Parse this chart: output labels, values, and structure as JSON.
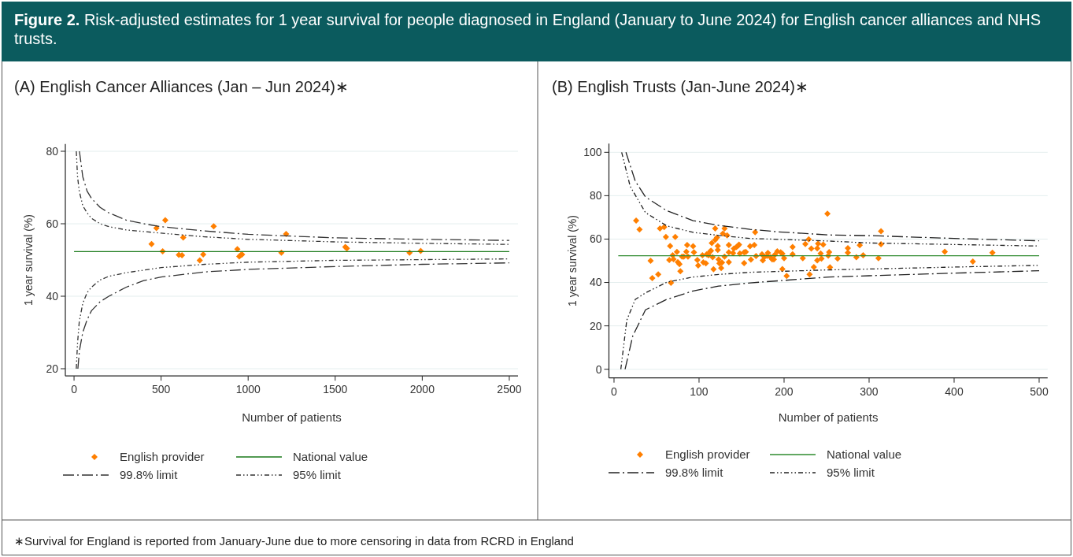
{
  "chart_data": [
    {
      "type": "scatter",
      "title": "(A) English Cancer Alliances (Jan – Jun 2024)∗",
      "xlabel": "Number of patients",
      "ylabel": "1 year survival (%)",
      "xlim": [
        -50,
        2550
      ],
      "xticks": [
        0,
        500,
        1000,
        1500,
        2000,
        2500
      ],
      "ylim": [
        18,
        82
      ],
      "yticks": [
        20,
        40,
        60,
        80
      ],
      "grid": "y",
      "legend": "bottom",
      "annotations": [
        "Figure 2.",
        "Risk-adjusted estimates for 1 year survival for people diagnosed in England (January to June 2024) for English cancer alliances and NHS trusts.",
        "∗Survival for England is reported from January-June due to more censoring in data from RCRD in England"
      ],
      "series": [
        {
          "name": "English provider",
          "color": "#ff7f00",
          "marker": "diamond",
          "x": [
            445,
            473,
            524,
            509,
            602,
            620,
            627,
            722,
            742,
            802,
            938,
            949,
            956,
            965,
            1191,
            1218,
            1558,
            1567,
            1927,
            1991
          ],
          "values": [
            54.4,
            58.8,
            61.0,
            52.4,
            51.4,
            51.3,
            56.2,
            49.9,
            51.5,
            59.3,
            53.0,
            51.0,
            51.3,
            51.5,
            52.0,
            57.2,
            53.6,
            53.2,
            52.0,
            52.5
          ]
        },
        {
          "name": "National value",
          "type": "line",
          "color": "#1a7a1a",
          "marker": "none",
          "line_style": "solid",
          "x": [
            0,
            2500
          ],
          "values": [
            52.3,
            52.3
          ]
        },
        {
          "name": "99.8% limit",
          "type": "line",
          "color": "#333333",
          "marker": "none",
          "line_style": "dashed",
          "x": [
            31,
            50,
            75,
            100,
            150,
            200,
            300,
            400,
            500,
            750,
            1000,
            1500,
            2000,
            2500
          ],
          "values": [
            80,
            73,
            69,
            67,
            64.5,
            63,
            61,
            60,
            59.2,
            58,
            57.1,
            56.1,
            55.7,
            55.4
          ]
        },
        {
          "type": "line",
          "color": "#333333",
          "marker": "none",
          "line_style": "dashed",
          "x": [
            22,
            31,
            50,
            75,
            100,
            150,
            200,
            300,
            400,
            500,
            750,
            1000,
            1500,
            2000,
            2500
          ],
          "values": [
            20,
            25,
            30,
            33.5,
            36,
            38.5,
            40,
            42.5,
            44.3,
            45.3,
            46.7,
            47.4,
            48.2,
            48.8,
            49.2
          ]
        },
        {
          "name": "95% limit",
          "type": "line",
          "color": "#333333",
          "marker": "none",
          "line_style": "dotted",
          "x": [
            13,
            20,
            30,
            50,
            75,
            100,
            150,
            200,
            300,
            500,
            750,
            1000,
            1500,
            2000,
            2500
          ],
          "values": [
            80,
            73,
            69,
            65,
            63,
            61.5,
            60,
            59.2,
            58.3,
            57.4,
            56.4,
            55.7,
            55,
            54.6,
            54.3
          ]
        },
        {
          "type": "line",
          "color": "#333333",
          "marker": "none",
          "line_style": "dotted",
          "x": [
            13,
            20,
            30,
            50,
            75,
            100,
            150,
            200,
            300,
            500,
            750,
            1000,
            1500,
            2000,
            2500
          ],
          "values": [
            20,
            27,
            33,
            38,
            41,
            42.5,
            44.5,
            45.5,
            46.5,
            47.9,
            48.8,
            49.4,
            49.9,
            50.1,
            50.3
          ]
        }
      ]
    },
    {
      "type": "scatter",
      "title": "(B) English Trusts (Jan-June 2024)∗",
      "xlabel": "Number of patients",
      "ylabel": "1 year survival (%)",
      "xlim": [
        -6,
        510
      ],
      "xticks": [
        0,
        100,
        200,
        300,
        400,
        500
      ],
      "ylim": [
        -4,
        104
      ],
      "yticks": [
        0,
        20,
        40,
        60,
        80,
        100
      ],
      "grid": "y",
      "legend": "bottom",
      "series": [
        {
          "name": "English provider",
          "color": "#ff7f00",
          "marker": "diamond",
          "x": [
            26,
            30,
            43,
            45,
            52,
            54,
            59,
            61,
            66,
            65,
            67,
            69,
            72,
            70,
            74,
            75,
            77,
            78,
            80,
            82,
            85,
            86,
            87,
            93,
            94,
            98,
            99,
            104,
            105,
            108,
            109,
            111,
            113,
            114,
            115,
            116,
            117,
            119,
            119,
            121,
            122,
            122,
            123,
            124,
            126,
            127,
            128,
            130,
            133,
            130,
            135,
            135,
            135,
            140,
            141,
            144,
            146,
            147,
            148,
            153,
            153,
            155,
            160,
            161,
            165,
            166,
            167,
            174,
            175,
            177,
            180,
            181,
            184,
            186,
            188,
            189,
            192,
            196,
            198,
            198,
            200,
            203,
            210,
            210,
            222,
            225,
            229,
            230,
            232,
            235,
            239,
            240,
            239,
            243,
            244,
            246,
            251,
            252,
            253,
            254,
            263,
            275,
            275,
            285,
            289,
            293,
            311,
            314,
            314,
            389,
            422,
            445
          ],
          "values": [
            68.5,
            64.4,
            50.0,
            42.0,
            43.7,
            64.9,
            65.5,
            61.0,
            56.8,
            50.4,
            39.8,
            52.5,
            61.0,
            50.7,
            54.1,
            49.4,
            48.5,
            45.2,
            51.9,
            51.9,
            54.2,
            57.3,
            51.9,
            56.7,
            53.9,
            50.4,
            47.8,
            52.5,
            49.3,
            48.8,
            53.0,
            52.5,
            54.3,
            54.6,
            58.2,
            51.6,
            46.1,
            64.9,
            59.6,
            60.7,
            55.0,
            56.8,
            50.6,
            48.8,
            46.6,
            49.2,
            62.5,
            64.9,
            61.7,
            51.9,
            53.9,
            57.3,
            49.4,
            53.5,
            55.6,
            56.4,
            57.0,
            57.4,
            53.4,
            48.9,
            53.9,
            54.1,
            56.7,
            50.5,
            57.3,
            63.2,
            52.2,
            53.0,
            50.2,
            51.8,
            52.3,
            53.6,
            51.6,
            50.6,
            50.6,
            52.7,
            54.4,
            53.9,
            53.3,
            46.2,
            51.2,
            43.0,
            53.0,
            56.4,
            51.2,
            57.7,
            59.9,
            43.7,
            55.6,
            47.1,
            55.7,
            57.9,
            50.2,
            53.4,
            51.0,
            57.4,
            71.7,
            52.4,
            54.0,
            47.0,
            51.0,
            55.8,
            53.7,
            51.6,
            57.2,
            52.5,
            51.2,
            63.6,
            57.6,
            54.2,
            49.6,
            53.7
          ]
        },
        {
          "name": "National value",
          "type": "line",
          "color": "#2e8b2e",
          "marker": "none",
          "line_style": "solid",
          "x": [
            5,
            500
          ],
          "values": [
            52.3,
            52.3
          ]
        },
        {
          "name": "99.8% limit",
          "type": "line",
          "color": "#222222",
          "marker": "none",
          "line_style": "dashed",
          "x": [
            14,
            25,
            37,
            62,
            93,
            123,
            160,
            191,
            253,
            300,
            400,
            500
          ],
          "values": [
            100,
            86.7,
            79.4,
            73.1,
            68.5,
            66.3,
            64.5,
            63.4,
            61.9,
            61.6,
            60.3,
            59.2
          ]
        },
        {
          "type": "line",
          "color": "#222222",
          "marker": "none",
          "line_style": "dashed",
          "x": [
            13,
            22,
            37,
            62,
            93,
            123,
            160,
            253,
            300,
            400,
            500
          ],
          "values": [
            0,
            15.3,
            27.4,
            32.2,
            36.1,
            38.3,
            39.8,
            42.5,
            43.1,
            44.3,
            45.4
          ]
        },
        {
          "name": "95% limit",
          "type": "line",
          "color": "#222222",
          "marker": "none",
          "line_style": "dotted",
          "x": [
            9,
            19,
            37,
            62,
            93,
            123,
            160,
            253,
            300,
            500
          ],
          "values": [
            100,
            84.3,
            72.2,
            66.1,
            63.1,
            61.7,
            60.3,
            59.1,
            58.2,
            56.8
          ]
        },
        {
          "type": "line",
          "color": "#222222",
          "marker": "none",
          "line_style": "dotted",
          "x": [
            8,
            15,
            25,
            37,
            62,
            93,
            123,
            160,
            253,
            300,
            400,
            500
          ],
          "values": [
            0,
            22.6,
            32.2,
            35.2,
            40.1,
            42.5,
            43.7,
            44.7,
            45.8,
            46.2,
            47.1,
            47.9
          ]
        }
      ]
    }
  ]
}
